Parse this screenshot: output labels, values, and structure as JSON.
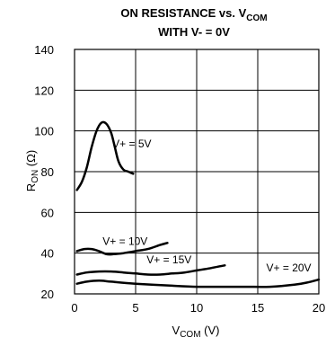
{
  "chart_data": {
    "type": "line",
    "title_line1_main": "ON RESISTANCE vs. V",
    "title_line1_sub": "COM",
    "title_line2": "WITH V- = 0V",
    "xlabel_main": "V",
    "xlabel_sub": "COM",
    "xlabel_suffix": " (V)",
    "ylabel_main": "R",
    "ylabel_sub": "ON",
    "ylabel_suffix": " (Ω)",
    "xlim": [
      0,
      20
    ],
    "ylim": [
      20,
      140
    ],
    "xticks": [
      0,
      5,
      10,
      15,
      20
    ],
    "yticks": [
      20,
      40,
      60,
      80,
      100,
      120,
      140
    ],
    "grid": true,
    "series": [
      {
        "name": "V+ = 5V",
        "label_at": [
          3.1,
          92
        ],
        "points": [
          [
            0.2,
            71
          ],
          [
            0.6,
            75
          ],
          [
            1.0,
            82
          ],
          [
            1.4,
            92
          ],
          [
            1.8,
            100
          ],
          [
            2.2,
            104
          ],
          [
            2.6,
            103.5
          ],
          [
            3.0,
            99
          ],
          [
            3.3,
            92
          ],
          [
            3.6,
            85
          ],
          [
            4.0,
            81
          ],
          [
            4.4,
            80
          ],
          [
            4.8,
            79
          ]
        ]
      },
      {
        "name": "V+ = 10V",
        "label_at": [
          2.3,
          44
        ],
        "points": [
          [
            0.2,
            41
          ],
          [
            0.8,
            42
          ],
          [
            1.4,
            42
          ],
          [
            2.0,
            41
          ],
          [
            2.6,
            39.5
          ],
          [
            3.2,
            39.5
          ],
          [
            4.0,
            40
          ],
          [
            5.0,
            41
          ],
          [
            6.0,
            42
          ],
          [
            7.0,
            44
          ],
          [
            7.6,
            45
          ]
        ]
      },
      {
        "name": "V+ = 15V",
        "label_at": [
          5.9,
          35
        ],
        "points": [
          [
            0.2,
            29.5
          ],
          [
            1.0,
            30.5
          ],
          [
            2.0,
            31
          ],
          [
            3.0,
            31
          ],
          [
            4.0,
            30.5
          ],
          [
            5.0,
            30
          ],
          [
            6.0,
            29.5
          ],
          [
            7.0,
            29.5
          ],
          [
            8.0,
            30
          ],
          [
            9.0,
            30.5
          ],
          [
            10.0,
            31.5
          ],
          [
            11.0,
            32.5
          ],
          [
            12.3,
            34
          ]
        ]
      },
      {
        "name": "V+ = 20V",
        "label_at": [
          15.7,
          31
        ],
        "points": [
          [
            0.2,
            25
          ],
          [
            1.0,
            26
          ],
          [
            2.0,
            26.5
          ],
          [
            3.0,
            26
          ],
          [
            5.0,
            25
          ],
          [
            8.0,
            24
          ],
          [
            10.0,
            23.5
          ],
          [
            12.0,
            23.5
          ],
          [
            14.0,
            23.5
          ],
          [
            16.0,
            23.5
          ],
          [
            18.0,
            24.5
          ],
          [
            19.0,
            25.5
          ],
          [
            20.0,
            27
          ]
        ]
      }
    ]
  }
}
